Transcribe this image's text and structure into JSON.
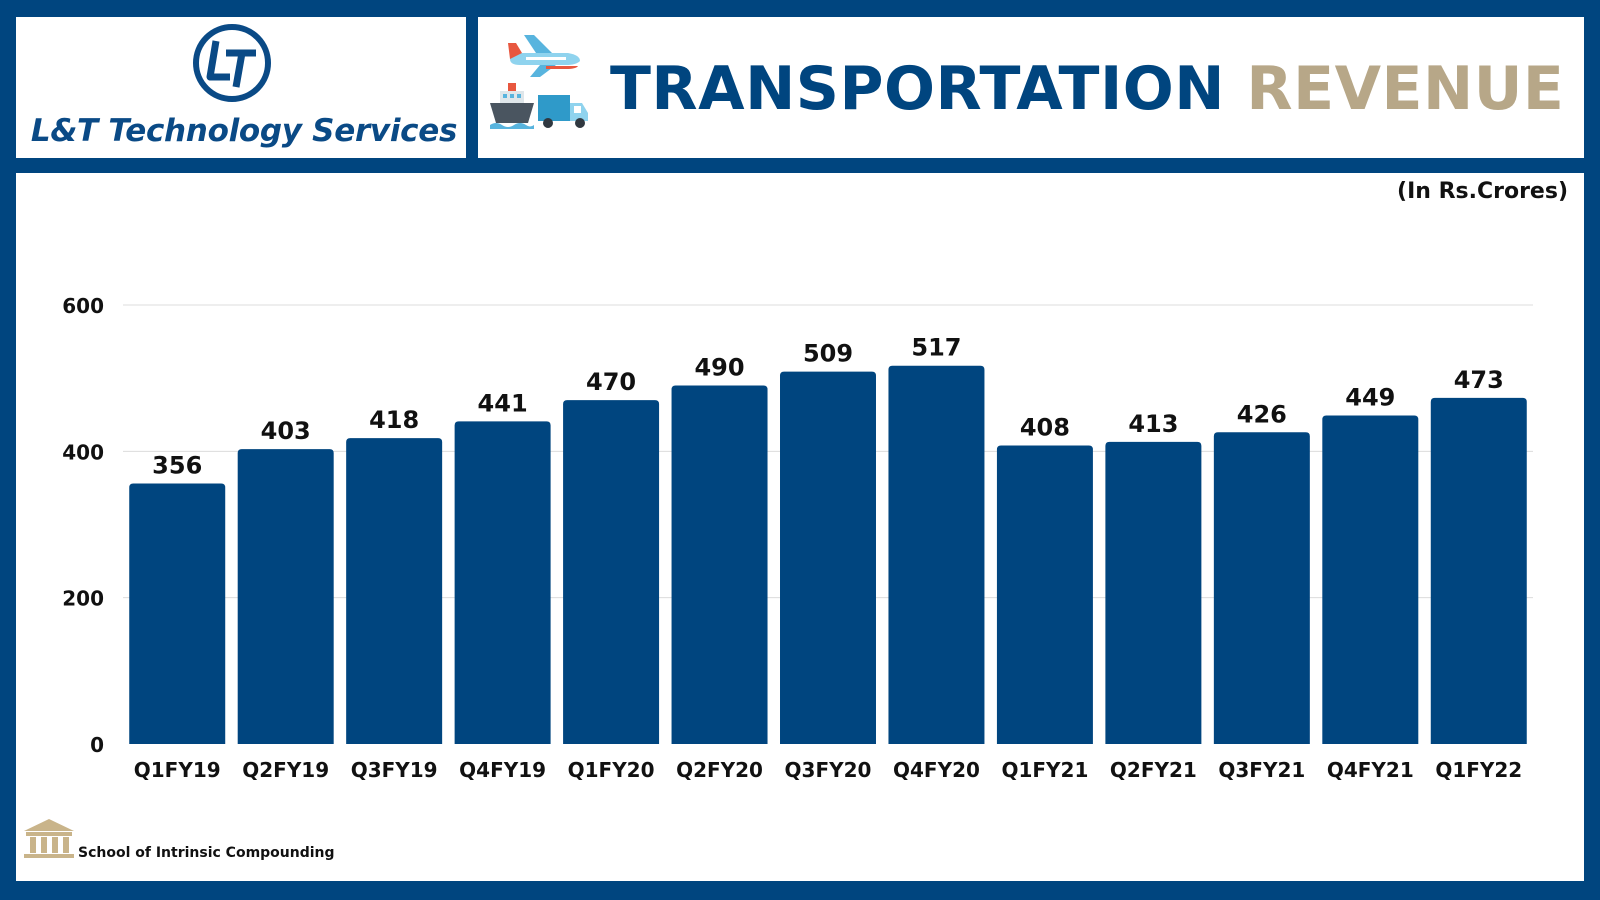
{
  "header": {
    "company_name": "L&T Technology Services",
    "title_part1": "TRANSPORTATION",
    "title_part2": "REVENUE"
  },
  "footer": {
    "credit": "School of Intrinsic Compounding"
  },
  "colors": {
    "navy": "#00457f",
    "gold": "#b7a788",
    "bar": "#00457f"
  },
  "chart_data": {
    "type": "bar",
    "title": "TRANSPORTATION REVENUE",
    "unit_label": "(In Rs.Crores)",
    "xlabel": "",
    "ylabel": "",
    "categories": [
      "Q1FY19",
      "Q2FY19",
      "Q3FY19",
      "Q4FY19",
      "Q1FY20",
      "Q2FY20",
      "Q3FY20",
      "Q4FY20",
      "Q1FY21",
      "Q2FY21",
      "Q3FY21",
      "Q4FY21",
      "Q1FY22"
    ],
    "values": [
      356,
      403,
      418,
      441,
      470,
      490,
      509,
      517,
      408,
      413,
      426,
      449,
      473
    ],
    "ylim": [
      0,
      600
    ],
    "yticks": [
      0,
      200,
      400,
      600
    ],
    "grid": true,
    "legend": "none"
  }
}
